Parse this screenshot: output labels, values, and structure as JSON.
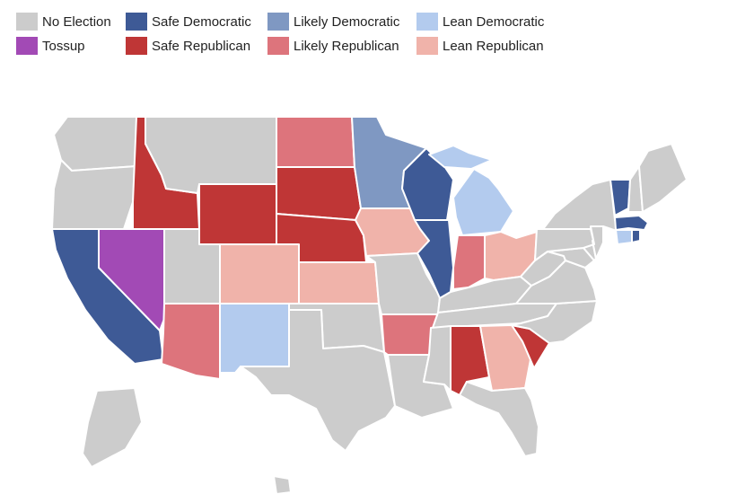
{
  "colors": {
    "no_election": "#cccccc",
    "safe_dem": "#3e5a96",
    "likely_dem": "#7f98c2",
    "lean_dem": "#b3cbee",
    "tossup": "#a24ab5",
    "safe_rep": "#bf3636",
    "likely_rep": "#dd747c",
    "lean_rep": "#f0b3aa"
  },
  "legend": [
    {
      "label": "No Election",
      "category": "no_election"
    },
    {
      "label": "Safe Democratic",
      "category": "safe_dem"
    },
    {
      "label": "Likely Democratic",
      "category": "likely_dem"
    },
    {
      "label": "Lean Democratic",
      "category": "lean_dem"
    },
    {
      "label": "Tossup",
      "category": "tossup"
    },
    {
      "label": "Safe Republican",
      "category": "safe_rep"
    },
    {
      "label": "Likely Republican",
      "category": "likely_rep"
    },
    {
      "label": "Lean Republican",
      "category": "lean_rep"
    }
  ],
  "states": {
    "WA": "no_election",
    "OR": "no_election",
    "CA": "safe_dem",
    "NV": "tossup",
    "ID": "safe_rep",
    "MT": "no_election",
    "WY": "safe_rep",
    "UT": "no_election",
    "AZ": "likely_rep",
    "CO": "lean_rep",
    "NM": "lean_dem",
    "ND": "likely_rep",
    "SD": "safe_rep",
    "NE": "safe_rep",
    "KS": "lean_rep",
    "OK": "no_election",
    "TX": "no_election",
    "MN": "likely_dem",
    "IA": "lean_rep",
    "MO": "no_election",
    "AR": "likely_rep",
    "LA": "no_election",
    "WI": "safe_dem",
    "IL": "safe_dem",
    "MI": "lean_dem",
    "IN": "likely_rep",
    "OH": "lean_rep",
    "KY": "no_election",
    "TN": "no_election",
    "MS": "no_election",
    "AL": "safe_rep",
    "GA": "lean_rep",
    "FL": "no_election",
    "SC": "safe_rep",
    "NC": "no_election",
    "VA": "no_election",
    "WV": "no_election",
    "PA": "no_election",
    "NY": "no_election",
    "VT": "safe_dem",
    "NH": "no_election",
    "ME": "no_election",
    "MA": "safe_dem",
    "CT": "lean_dem",
    "RI": "safe_dem",
    "NJ": "no_election",
    "DE": "no_election",
    "MD": "no_election",
    "AK": "no_election",
    "HI": "no_election"
  }
}
